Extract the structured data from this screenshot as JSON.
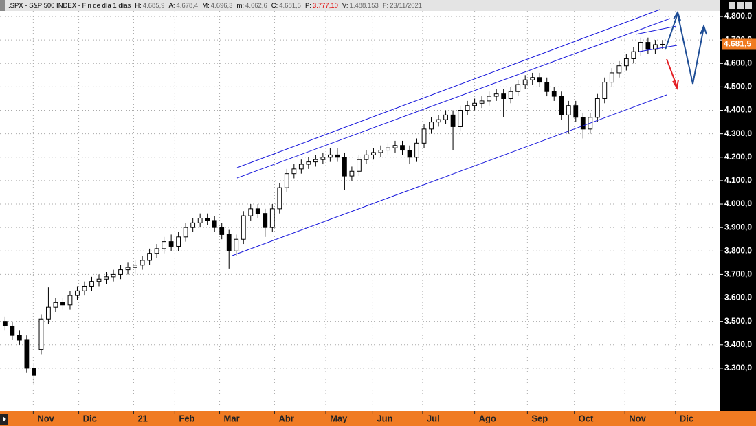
{
  "header": {
    "symbol": ".SPX - S&P 500 INDEX - Fin de día 1 días",
    "fields": [
      {
        "label": "H:",
        "value": "4.685,9"
      },
      {
        "label": "A:",
        "value": "4.678,4"
      },
      {
        "label": "M:",
        "value": "4.696,3"
      },
      {
        "label": "m:",
        "value": "4.662,6"
      },
      {
        "label": "C:",
        "value": "4.681,5"
      },
      {
        "label": "P:",
        "value": "3.777,10"
      },
      {
        "label": "V:",
        "value": "1.488.153"
      },
      {
        "label": "F:",
        "value": "23/11/2021"
      }
    ]
  },
  "chart_data": {
    "type": "candlestick",
    "open": [
      3500,
      3480,
      3440,
      3420,
      3300,
      3380,
      3510,
      3560,
      3580,
      3570,
      3610,
      3630,
      3650,
      3670,
      3680,
      3690,
      3700,
      3720,
      3730,
      3740,
      3760,
      3790,
      3810,
      3840,
      3820,
      3860,
      3900,
      3920,
      3940,
      3930,
      3900,
      3870,
      3800,
      3850,
      3950,
      3980,
      3960,
      3900,
      3980,
      4070,
      4130,
      4150,
      4170,
      4180,
      4190,
      4200,
      4210,
      4200,
      4120,
      4140,
      4190,
      4210,
      4220,
      4230,
      4240,
      4250,
      4230,
      4200,
      4260,
      4320,
      4350,
      4360,
      4380,
      4330,
      4400,
      4420,
      4430,
      4440,
      4460,
      4470,
      4450,
      4480,
      4510,
      4530,
      4540,
      4520,
      4480,
      4460,
      4380,
      4420,
      4370,
      4320,
      4370,
      4450,
      4520,
      4560,
      4590,
      4620,
      4650,
      4690,
      4660,
      4680
    ],
    "high": [
      3520,
      3500,
      3460,
      3440,
      3320,
      3530,
      3645,
      3600,
      3600,
      3630,
      3650,
      3670,
      3690,
      3700,
      3710,
      3720,
      3740,
      3750,
      3760,
      3780,
      3810,
      3830,
      3860,
      3870,
      3880,
      3920,
      3940,
      3960,
      3960,
      3950,
      3920,
      3890,
      3870,
      3970,
      4000,
      4000,
      3980,
      4000,
      4090,
      4150,
      4170,
      4190,
      4200,
      4210,
      4220,
      4240,
      4240,
      4220,
      4160,
      4210,
      4230,
      4240,
      4250,
      4260,
      4270,
      4270,
      4250,
      4280,
      4340,
      4370,
      4380,
      4400,
      4400,
      4420,
      4440,
      4450,
      4460,
      4480,
      4490,
      4490,
      4500,
      4530,
      4550,
      4560,
      4560,
      4540,
      4500,
      4480,
      4440,
      4440,
      4390,
      4390,
      4470,
      4540,
      4580,
      4610,
      4640,
      4670,
      4710,
      4710,
      4700,
      4700
    ],
    "low": [
      3460,
      3420,
      3400,
      3280,
      3230,
      3360,
      3490,
      3540,
      3550,
      3550,
      3590,
      3610,
      3630,
      3650,
      3660,
      3670,
      3680,
      3700,
      3700,
      3720,
      3740,
      3770,
      3790,
      3800,
      3800,
      3840,
      3880,
      3900,
      3910,
      3880,
      3850,
      3725,
      3780,
      3830,
      3930,
      3940,
      3860,
      3880,
      3960,
      4050,
      4110,
      4130,
      4150,
      4160,
      4170,
      4180,
      4180,
      4060,
      4100,
      4120,
      4170,
      4190,
      4200,
      4210,
      4220,
      4210,
      4170,
      4180,
      4240,
      4300,
      4330,
      4340,
      4230,
      4310,
      4380,
      4400,
      4410,
      4420,
      4440,
      4370,
      4430,
      4460,
      4490,
      4510,
      4500,
      4460,
      4440,
      4360,
      4300,
      4350,
      4280,
      4300,
      4350,
      4430,
      4500,
      4540,
      4570,
      4600,
      4630,
      4640,
      4640,
      4660
    ],
    "close": [
      3480,
      3440,
      3420,
      3300,
      3270,
      3510,
      3560,
      3580,
      3570,
      3610,
      3630,
      3650,
      3670,
      3680,
      3690,
      3700,
      3720,
      3730,
      3740,
      3760,
      3790,
      3810,
      3840,
      3820,
      3860,
      3900,
      3920,
      3940,
      3930,
      3900,
      3870,
      3800,
      3850,
      3950,
      3980,
      3960,
      3900,
      3980,
      4070,
      4130,
      4150,
      4170,
      4180,
      4190,
      4200,
      4210,
      4200,
      4120,
      4140,
      4190,
      4210,
      4220,
      4230,
      4240,
      4250,
      4230,
      4200,
      4260,
      4320,
      4350,
      4360,
      4380,
      4330,
      4400,
      4420,
      4430,
      4440,
      4460,
      4470,
      4450,
      4480,
      4510,
      4530,
      4540,
      4520,
      4480,
      4460,
      4380,
      4420,
      4370,
      4320,
      4370,
      4450,
      4520,
      4560,
      4590,
      4620,
      4650,
      4690,
      4660,
      4680,
      4681.5
    ],
    "last_price": {
      "value": 4681.5,
      "label": "4.681,5"
    },
    "xlim": [
      -0.7,
      99
    ],
    "xticks": [
      {
        "value": 3.9,
        "label": "Nov"
      },
      {
        "value": 10.2,
        "label": "Dic"
      },
      {
        "value": 17.8,
        "label": "21"
      },
      {
        "value": 23.5,
        "label": "Feb"
      },
      {
        "value": 29.7,
        "label": "Mar"
      },
      {
        "value": 37.3,
        "label": "Abr"
      },
      {
        "value": 44.4,
        "label": "May"
      },
      {
        "value": 50.9,
        "label": "Jun"
      },
      {
        "value": 57.8,
        "label": "Jul"
      },
      {
        "value": 65.0,
        "label": "Ago"
      },
      {
        "value": 72.3,
        "label": "Sep"
      },
      {
        "value": 78.8,
        "label": "Oct"
      },
      {
        "value": 85.8,
        "label": "Nov"
      },
      {
        "value": 92.8,
        "label": "Dic"
      }
    ],
    "ylim": [
      3121,
      4847
    ],
    "yticks": [
      {
        "value": 3300,
        "label": "3.300,0"
      },
      {
        "value": 3400,
        "label": "3.400,0"
      },
      {
        "value": 3500,
        "label": "3.500,0"
      },
      {
        "value": 3600,
        "label": "3.600,0"
      },
      {
        "value": 3700,
        "label": "3.700,0"
      },
      {
        "value": 3800,
        "label": "3.800,0"
      },
      {
        "value": 3900,
        "label": "3.900,0"
      },
      {
        "value": 4000,
        "label": "4.000,0"
      },
      {
        "value": 4100,
        "label": "4.100,0"
      },
      {
        "value": 4200,
        "label": "4.200,0"
      },
      {
        "value": 4300,
        "label": "4.300,0"
      },
      {
        "value": 4400,
        "label": "4.400,0"
      },
      {
        "value": 4500,
        "label": "4.500,0"
      },
      {
        "value": 4600,
        "label": "4.600,0"
      },
      {
        "value": 4700,
        "label": "4.700,0"
      },
      {
        "value": 4800,
        "label": "4.800,0"
      }
    ],
    "grid": true,
    "up_color": "#ffffff",
    "down_color": "#000000",
    "line_color": "#000000"
  }
}
